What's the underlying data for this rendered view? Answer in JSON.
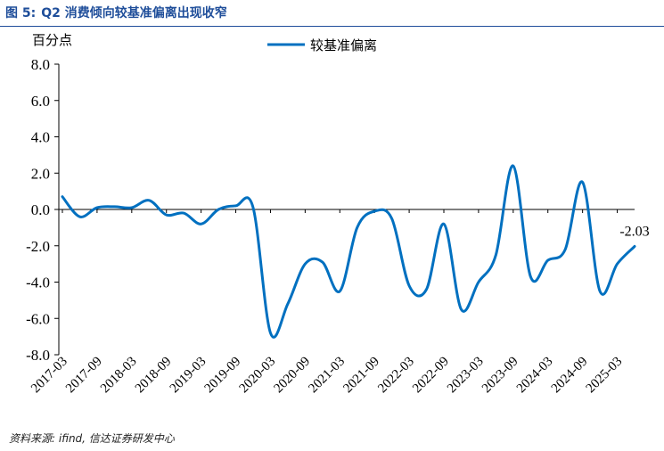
{
  "figure": {
    "number_label": "图 5:",
    "title": "Q2 消费倾向较基准偏离出现收窄",
    "source": "资料来源: ifind, 信达证券研发中心"
  },
  "colors": {
    "accent": "#1f4e9a",
    "series": "#0070c0"
  },
  "chart_data": {
    "type": "line",
    "ylabel": "百分点",
    "xlabel": "",
    "ylim": [
      -8,
      8
    ],
    "yticks": [
      "8.0",
      "6.0",
      "4.0",
      "2.0",
      "0.0",
      "-2.0",
      "-4.0",
      "-6.0",
      "-8.0"
    ],
    "x_tick_labels": [
      "2017-03",
      "2017-09",
      "2018-03",
      "2018-09",
      "2019-03",
      "2019-09",
      "2020-03",
      "2020-09",
      "2021-03",
      "2021-09",
      "2022-03",
      "2022-09",
      "2023-03",
      "2023-09",
      "2024-03",
      "2024-09",
      "2025-03"
    ],
    "grid": false,
    "legend_position": "top-center",
    "series": [
      {
        "name": "较基准偏离",
        "x": [
          "2017-03",
          "2017-06",
          "2017-09",
          "2017-12",
          "2018-03",
          "2018-06",
          "2018-09",
          "2018-12",
          "2019-03",
          "2019-06",
          "2019-09",
          "2019-12",
          "2020-03",
          "2020-06",
          "2020-09",
          "2020-12",
          "2021-03",
          "2021-06",
          "2021-09",
          "2021-12",
          "2022-03",
          "2022-06",
          "2022-09",
          "2022-12",
          "2023-03",
          "2023-06",
          "2023-09",
          "2023-12",
          "2024-03",
          "2024-06",
          "2024-09",
          "2024-12",
          "2025-03",
          "2025-06"
        ],
        "values": [
          0.7,
          -0.4,
          0.1,
          0.15,
          0.1,
          0.5,
          -0.3,
          -0.2,
          -0.8,
          0.0,
          0.2,
          0.1,
          -6.8,
          -5.2,
          -3.0,
          -2.9,
          -4.5,
          -1.0,
          -0.1,
          -0.5,
          -4.2,
          -4.4,
          -0.8,
          -5.5,
          -4.0,
          -2.5,
          2.4,
          -3.7,
          -2.8,
          -2.2,
          1.5,
          -4.5,
          -3.0,
          -2.03
        ]
      }
    ],
    "annotations": [
      {
        "x": "2025-06",
        "text": "-2.03"
      }
    ]
  }
}
